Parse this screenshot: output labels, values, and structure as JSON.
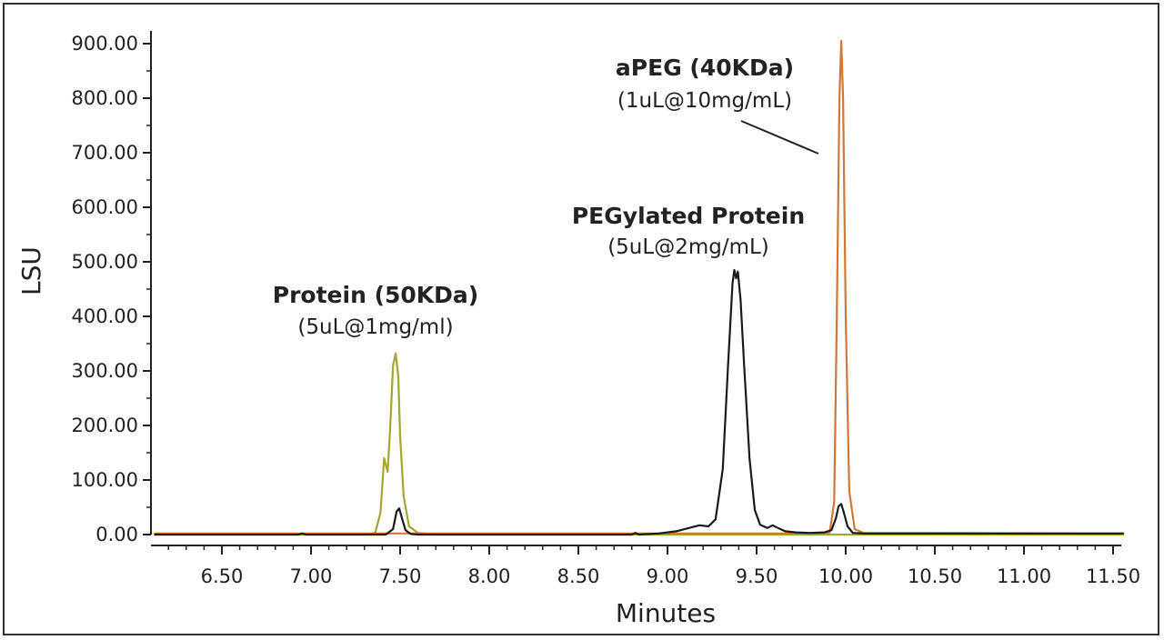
{
  "chart_data": {
    "type": "line",
    "xlabel": "Minutes",
    "ylabel": "LSU",
    "xlim": [
      6.12,
      11.56
    ],
    "ylim": [
      0,
      920
    ],
    "x_ticks": [
      "6.50",
      "7.00",
      "7.50",
      "8.00",
      "8.50",
      "9.00",
      "9.50",
      "10.00",
      "10.50",
      "11.00",
      "11.50"
    ],
    "y_ticks": [
      "0.00",
      "100.00",
      "200.00",
      "300.00",
      "400.00",
      "500.00",
      "600.00",
      "700.00",
      "800.00",
      "900.00"
    ],
    "grid": false,
    "series": [
      {
        "color": "#a3a632",
        "points": [
          [
            6.12,
            0
          ],
          [
            7.3,
            0
          ],
          [
            7.36,
            3
          ],
          [
            7.39,
            40
          ],
          [
            7.41,
            140
          ],
          [
            7.43,
            115
          ],
          [
            7.445,
            200
          ],
          [
            7.46,
            310
          ],
          [
            7.475,
            332
          ],
          [
            7.49,
            290
          ],
          [
            7.5,
            180
          ],
          [
            7.52,
            70
          ],
          [
            7.55,
            15
          ],
          [
            7.6,
            3
          ],
          [
            7.7,
            0
          ],
          [
            11.56,
            0
          ]
        ]
      },
      {
        "color": "#d0783a",
        "points": [
          [
            6.12,
            2
          ],
          [
            9.86,
            2
          ],
          [
            9.91,
            4
          ],
          [
            9.935,
            60
          ],
          [
            9.95,
            400
          ],
          [
            9.965,
            800
          ],
          [
            9.975,
            905
          ],
          [
            9.985,
            800
          ],
          [
            10.0,
            400
          ],
          [
            10.02,
            80
          ],
          [
            10.05,
            10
          ],
          [
            10.1,
            3
          ],
          [
            11.56,
            2
          ]
        ]
      },
      {
        "color": "#1a1a1a",
        "points": [
          [
            6.12,
            0
          ],
          [
            6.93,
            0
          ],
          [
            6.95,
            2
          ],
          [
            6.97,
            0
          ],
          [
            7.42,
            0
          ],
          [
            7.46,
            10
          ],
          [
            7.48,
            42
          ],
          [
            7.495,
            48
          ],
          [
            7.51,
            30
          ],
          [
            7.53,
            8
          ],
          [
            7.56,
            1
          ],
          [
            7.6,
            0
          ],
          [
            8.8,
            0
          ],
          [
            8.82,
            3
          ],
          [
            8.84,
            0
          ],
          [
            8.95,
            2
          ],
          [
            9.05,
            6
          ],
          [
            9.12,
            12
          ],
          [
            9.18,
            17
          ],
          [
            9.23,
            15
          ],
          [
            9.27,
            28
          ],
          [
            9.31,
            120
          ],
          [
            9.34,
            310
          ],
          [
            9.365,
            460
          ],
          [
            9.375,
            485
          ],
          [
            9.385,
            470
          ],
          [
            9.395,
            482
          ],
          [
            9.41,
            430
          ],
          [
            9.43,
            310
          ],
          [
            9.46,
            140
          ],
          [
            9.49,
            45
          ],
          [
            9.52,
            18
          ],
          [
            9.56,
            12
          ],
          [
            9.59,
            17
          ],
          [
            9.62,
            12
          ],
          [
            9.66,
            6
          ],
          [
            9.72,
            4
          ],
          [
            9.8,
            3
          ],
          [
            9.88,
            4
          ],
          [
            9.92,
            8
          ],
          [
            9.945,
            30
          ],
          [
            9.96,
            52
          ],
          [
            9.975,
            56
          ],
          [
            9.99,
            40
          ],
          [
            10.01,
            15
          ],
          [
            10.04,
            3
          ],
          [
            10.1,
            2
          ],
          [
            11.56,
            2
          ]
        ]
      }
    ],
    "annotations": [
      {
        "title": "Protein (50KDa)",
        "subtitle": "(5uL@1mg/ml)"
      },
      {
        "title": "PEGylated Protein",
        "subtitle": "(5uL@2mg/mL)"
      },
      {
        "title": "aPEG (40KDa)",
        "subtitle": "(1uL@10mg/mL)"
      }
    ]
  }
}
